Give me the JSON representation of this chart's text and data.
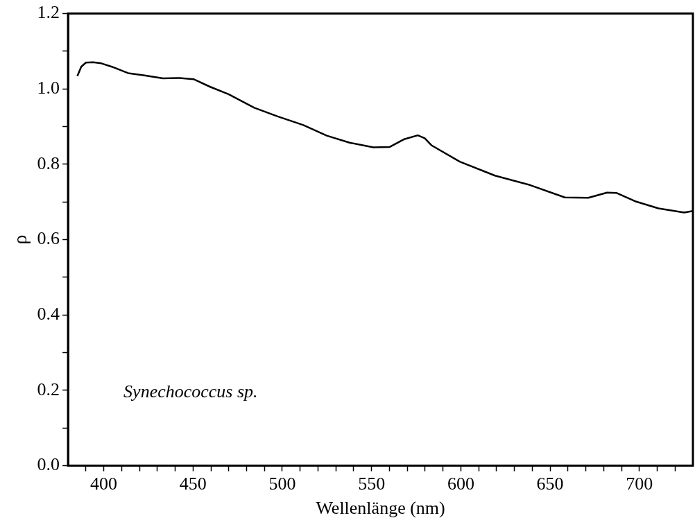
{
  "chart_data": {
    "type": "line",
    "xlabel": "Wellenlänge (nm)",
    "ylabel": "ρ",
    "annotations": [
      "Synechococcus sp."
    ],
    "xlim": [
      380,
      730
    ],
    "ylim": [
      0,
      1.2
    ],
    "xticks": [
      {
        "value": 390,
        "label": null
      },
      400,
      {
        "value": 410,
        "label": null
      },
      {
        "value": 420,
        "label": null
      },
      {
        "value": 430,
        "label": null
      },
      {
        "value": 440,
        "label": null
      },
      450,
      {
        "value": 460,
        "label": null
      },
      {
        "value": 470,
        "label": null
      },
      {
        "value": 480,
        "label": null
      },
      {
        "value": 490,
        "label": null
      },
      500,
      {
        "value": 510,
        "label": null
      },
      {
        "value": 520,
        "label": null
      },
      {
        "value": 530,
        "label": null
      },
      {
        "value": 540,
        "label": null
      },
      550,
      {
        "value": 560,
        "label": null
      },
      {
        "value": 570,
        "label": null
      },
      {
        "value": 580,
        "label": null
      },
      {
        "value": 590,
        "label": null
      },
      600,
      {
        "value": 610,
        "label": null
      },
      {
        "value": 620,
        "label": null
      },
      {
        "value": 630,
        "label": null
      },
      {
        "value": 640,
        "label": null
      },
      650,
      {
        "value": 660,
        "label": null
      },
      {
        "value": 670,
        "label": null
      },
      {
        "value": 680,
        "label": null
      },
      {
        "value": 690,
        "label": null
      },
      700,
      {
        "value": 710,
        "label": null
      },
      {
        "value": 720,
        "label": null
      }
    ],
    "yticks": [
      {
        "value": 0,
        "label": "0.0"
      },
      {
        "value": 0.1,
        "label": null
      },
      0.2,
      {
        "value": 0.3,
        "label": null
      },
      0.4,
      {
        "value": 0.5,
        "label": null
      },
      0.6,
      {
        "value": 0.7,
        "label": null
      },
      0.8,
      {
        "value": 0.9,
        "label": null
      },
      {
        "value": 1,
        "label": "1.0"
      },
      {
        "value": 1.1,
        "label": null
      },
      1.2
    ],
    "series": [
      {
        "color": "#000000",
        "x": [
          385.2,
          387.4,
          390,
          394,
          398.6,
          404.5,
          413.6,
          422.8,
          433.2,
          442.4,
          450.3,
          459.4,
          469.9,
          484.3,
          497.4,
          511.8,
          524.9,
          538,
          551,
          560.2,
          568,
          575.9,
          579.8,
          583.7,
          599.4,
          619.1,
          638.7,
          658.3,
          671.4,
          681.9,
          687.1,
          697.6,
          710.7,
          725.1,
          730
        ],
        "values": [
          1.034,
          1.059,
          1.07,
          1.071,
          1.068,
          1.059,
          1.042,
          1.036,
          1.028,
          1.029,
          1.026,
          1.006,
          0.986,
          0.95,
          0.927,
          0.904,
          0.876,
          0.857,
          0.845,
          0.846,
          0.866,
          0.877,
          0.869,
          0.85,
          0.807,
          0.77,
          0.745,
          0.712,
          0.711,
          0.725,
          0.724,
          0.702,
          0.683,
          0.672,
          0.676
        ]
      }
    ]
  }
}
